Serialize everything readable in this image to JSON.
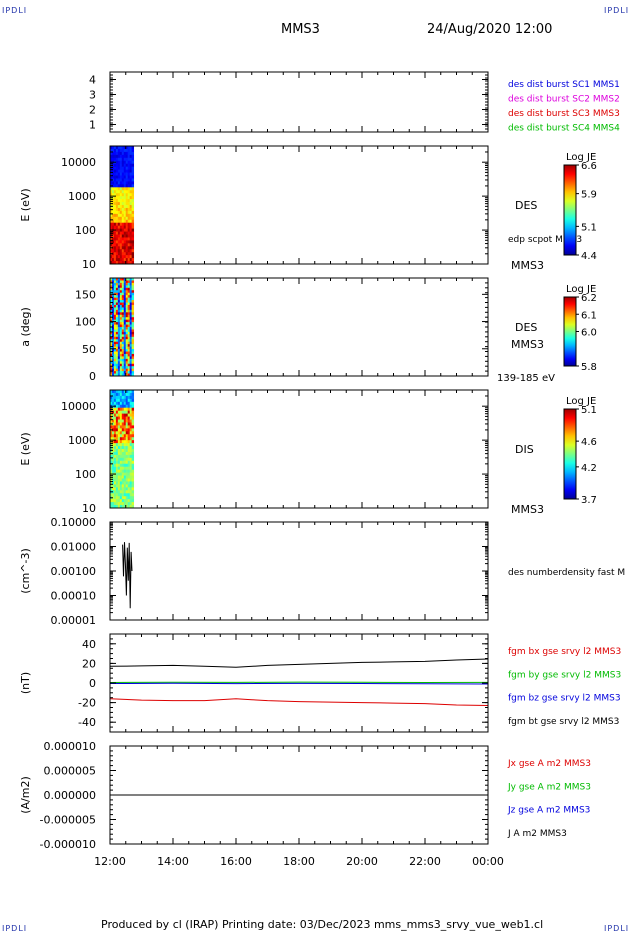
{
  "header": {
    "corner_left_top": "IPDLI",
    "corner_right_top": "IPDLI",
    "corner_left_bottom": "IPDLI",
    "corner_right_bottom": "IPDLI",
    "title": "MMS3",
    "date": "24/Aug/2020 12:00"
  },
  "footer": {
    "text": "Produced by cl (IRAP)   Printing date: 03/Dec/2023   mms_mms3_srvy_vue_web1.cl"
  },
  "x_axis": {
    "ticks": [
      "12:00",
      "14:00",
      "16:00",
      "18:00",
      "20:00",
      "22:00",
      "00:00"
    ],
    "range_hours": [
      12,
      24
    ]
  },
  "chart_data": [
    {
      "id": "panel1",
      "type": "line",
      "ylabel": "",
      "yticks": [
        "4",
        "3",
        "2",
        "1"
      ],
      "ylim": [
        0.5,
        4.5
      ],
      "legend": [
        {
          "label": "des dist burst SC1 MMS1",
          "color": "#0000dd"
        },
        {
          "label": "des dist burst SC2 MMS2",
          "color": "#dd00dd"
        },
        {
          "label": "des dist burst SC3 MMS3",
          "color": "#dd0000"
        },
        {
          "label": "des dist burst SC4 MMS4",
          "color": "#00bb00"
        }
      ]
    },
    {
      "id": "panel2",
      "type": "heatmap",
      "ylabel": "E (eV)",
      "yscale": "log",
      "ylim": [
        10,
        30000
      ],
      "yticks": [
        "10000",
        "1000",
        "100",
        "10"
      ],
      "data_extent_hours": [
        12.0,
        12.75
      ],
      "right_labels": [
        "DES",
        "edp scpot MMS3",
        "MMS3"
      ],
      "colorbar": {
        "title": "Log JE",
        "ticks": [
          "6.6",
          "5.9",
          "5.1",
          "4.4"
        ],
        "range": [
          4.4,
          6.6
        ]
      }
    },
    {
      "id": "panel3",
      "type": "heatmap",
      "ylabel": "a (deg)",
      "ylim": [
        0,
        180
      ],
      "yticks": [
        "150",
        "100",
        "50",
        "0"
      ],
      "data_extent_hours": [
        12.0,
        12.75
      ],
      "right_labels": [
        "DES",
        "MMS3",
        "139-185 eV"
      ],
      "colorbar": {
        "title": "Log JE",
        "ticks": [
          "6.2",
          "6.1",
          "6.0",
          "5.8"
        ],
        "range": [
          5.8,
          6.2
        ]
      }
    },
    {
      "id": "panel4",
      "type": "heatmap",
      "ylabel": "E (eV)",
      "yscale": "log",
      "ylim": [
        10,
        30000
      ],
      "yticks": [
        "10000",
        "1000",
        "100",
        "10"
      ],
      "data_extent_hours": [
        12.0,
        12.75
      ],
      "right_labels": [
        "DIS",
        "MMS3"
      ],
      "colorbar": {
        "title": "Log JE",
        "ticks": [
          "5.1",
          "4.6",
          "4.2",
          "3.7"
        ],
        "range": [
          3.7,
          5.1
        ]
      }
    },
    {
      "id": "panel5",
      "type": "line",
      "ylabel": "(cm^-3)",
      "yscale": "log",
      "ylim": [
        1e-05,
        0.1
      ],
      "yticks": [
        "0.10000",
        "0.01000",
        "0.00100",
        "0.00010",
        "0.00001"
      ],
      "series": [
        {
          "name": "des numberdensity fast M",
          "color": "#000000",
          "x": [
            12.4,
            12.43,
            12.46,
            12.49,
            12.52,
            12.55,
            12.58,
            12.61,
            12.64,
            12.67,
            12.7
          ],
          "y": [
            0.012,
            0.0006,
            0.015,
            0.002,
            0.0001,
            0.009,
            0.0004,
            0.014,
            3e-05,
            0.006,
            0.001
          ]
        }
      ]
    },
    {
      "id": "panel6",
      "type": "line",
      "ylabel": "(nT)",
      "ylim": [
        -50,
        50
      ],
      "yticks": [
        "40",
        "20",
        "0",
        "-20",
        "-40"
      ],
      "series": [
        {
          "name": "fgm bx gse srvy l2 MMS3",
          "color": "#dd0000",
          "x": [
            12,
            13,
            14,
            15,
            16,
            16.5,
            17,
            18,
            19,
            20,
            21,
            22,
            23,
            24
          ],
          "y": [
            -16,
            -17.5,
            -18,
            -18,
            -16,
            -17,
            -18,
            -19,
            -19.5,
            -20,
            -20.5,
            -21,
            -22.5,
            -23
          ]
        },
        {
          "name": "fgm by gse srvy l2 MMS3",
          "color": "#00bb00",
          "x": [
            12,
            14,
            16,
            18,
            20,
            22,
            24
          ],
          "y": [
            0.5,
            0.8,
            0.6,
            0.9,
            0.7,
            0.5,
            0.6
          ]
        },
        {
          "name": "fgm bz gse srvy l2 MMS3",
          "color": "#0000dd",
          "x": [
            12,
            14,
            16,
            18,
            20,
            22,
            24
          ],
          "y": [
            -0.5,
            -0.3,
            -0.6,
            -0.4,
            -0.5,
            -0.8,
            -1.0
          ]
        },
        {
          "name": "fgm bt gse srvy l2 MMS3",
          "color": "#000000",
          "x": [
            12,
            13,
            14,
            15,
            16,
            17,
            18,
            19,
            20,
            21,
            22,
            23,
            24
          ],
          "y": [
            17,
            17.5,
            18,
            17,
            16,
            18,
            19,
            20,
            21,
            21.5,
            22,
            23.5,
            24.5
          ]
        }
      ]
    },
    {
      "id": "panel7",
      "type": "line",
      "ylabel": "(A/m2)",
      "ylim": [
        -1e-05,
        1e-05
      ],
      "yticks": [
        "0.000010",
        "0.000005",
        "0.000000",
        "-0.000005",
        "-0.000010"
      ],
      "series": [
        {
          "name": "Jx gse A m2 MMS3",
          "color": "#dd0000",
          "x": [],
          "y": []
        },
        {
          "name": "Jy gse A m2 MMS3",
          "color": "#00bb00",
          "x": [],
          "y": []
        },
        {
          "name": "Jz gse A m2 MMS3",
          "color": "#0000dd",
          "x": [],
          "y": []
        },
        {
          "name": "J A m2 MMS3",
          "color": "#000000",
          "x": [
            12,
            24
          ],
          "y": [
            0,
            0
          ]
        }
      ]
    }
  ]
}
